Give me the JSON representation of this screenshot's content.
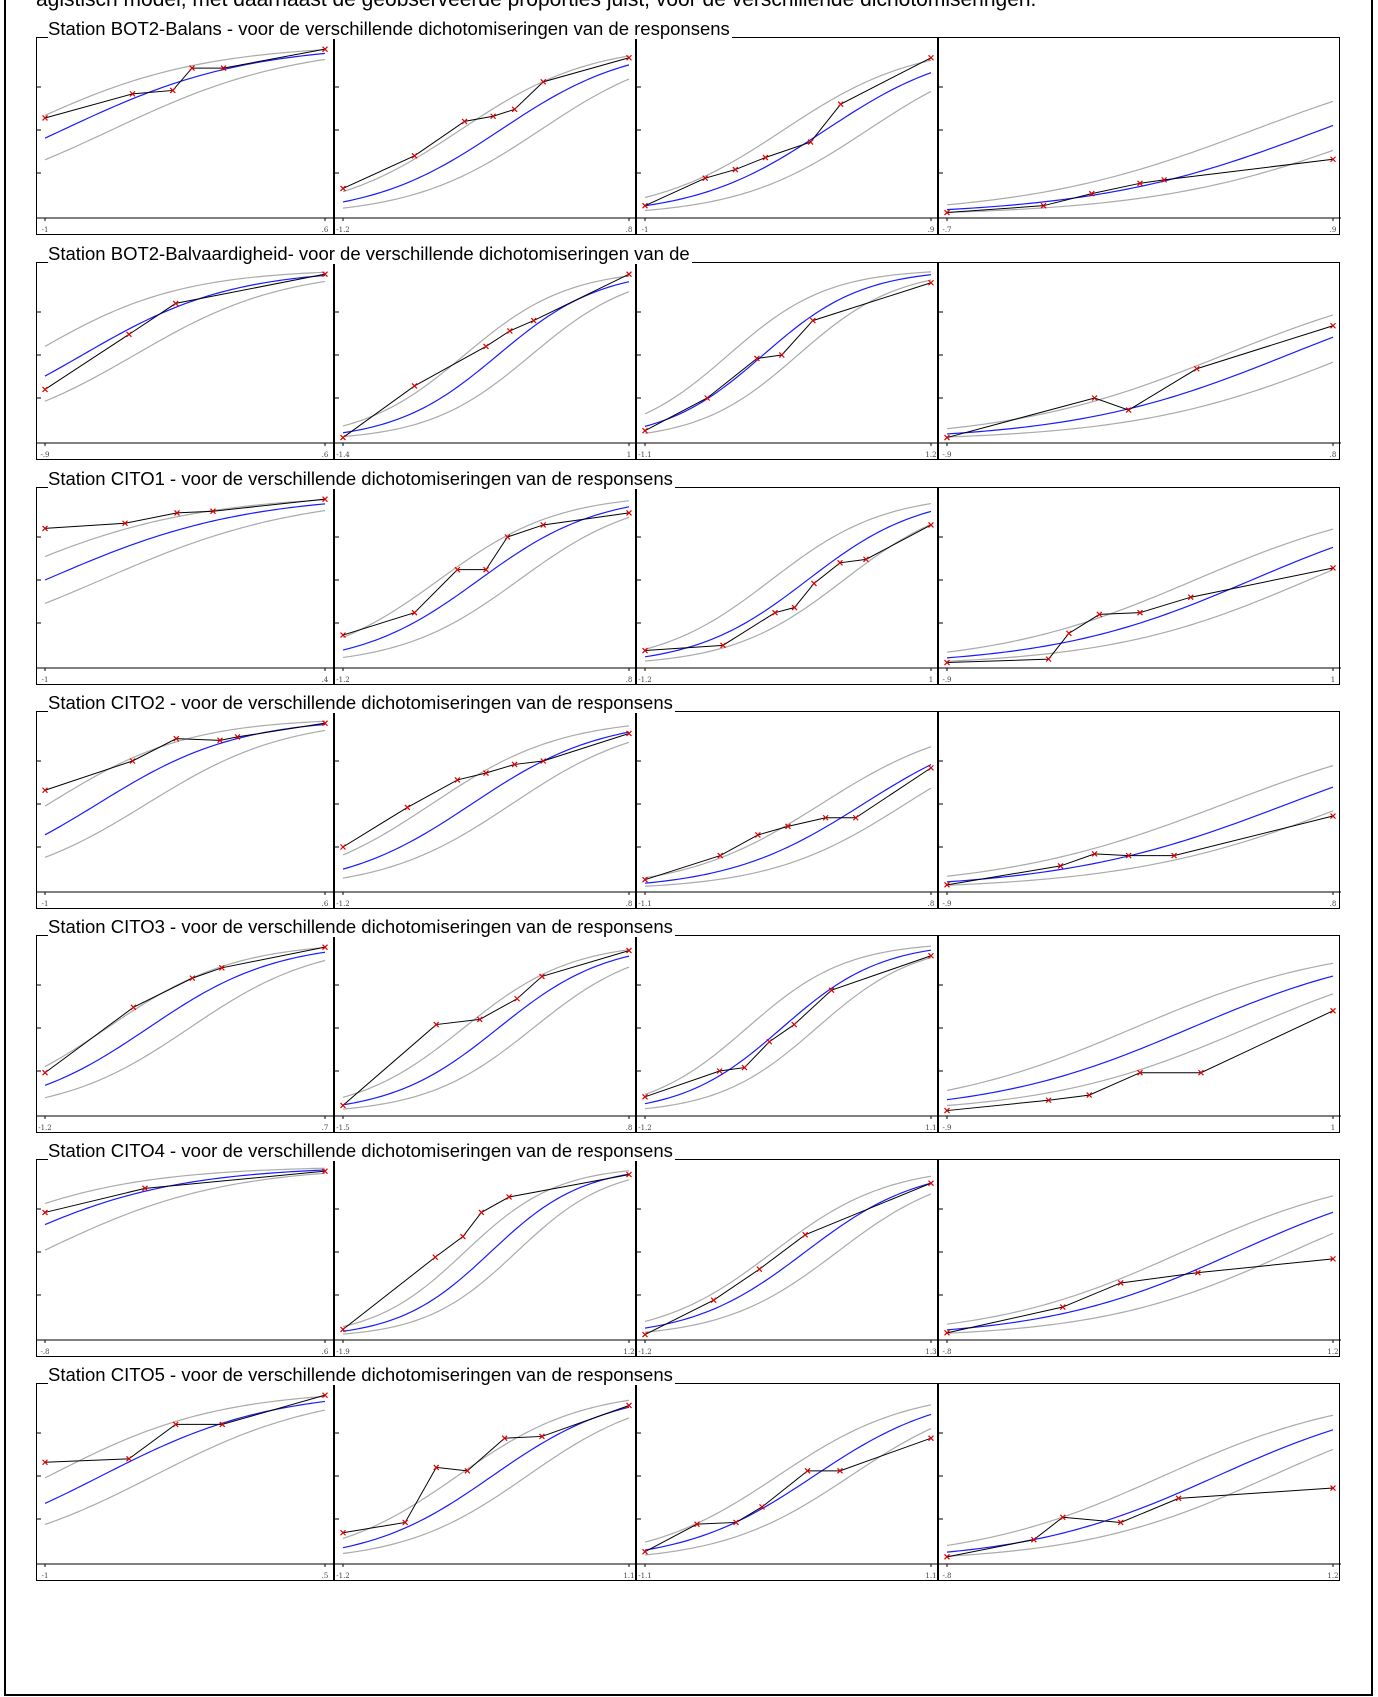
{
  "page": {
    "clipped_title": "agistisch model, met daarnaast de geobserveerde proporties juist, voor de verschillende dichotomiseringen."
  },
  "colors": {
    "fit_curve": "#1a1aff",
    "band": "#aaaaaa",
    "observed_line": "#000000",
    "observed_marker": "#dd0000"
  },
  "stations": [
    {
      "title": "Station BOT2-Balans - voor de verschillende dichotomiseringen van de responsens",
      "panels": [
        {
          "xmin": "-1",
          "xmax": ".6",
          "x0": -1,
          "x1": 0.6,
          "a": 1.9,
          "b": -0.9,
          "obs": [
            [
              -1,
              0.57
            ],
            [
              -0.5,
              0.71
            ],
            [
              -0.27,
              0.73
            ],
            [
              -0.16,
              0.86
            ],
            [
              0.02,
              0.86
            ],
            [
              0.6,
              0.97
            ]
          ]
        },
        {
          "xmin": "-1.2",
          "xmax": ".8",
          "x0": -1.2,
          "x1": 0.8,
          "a": 2.2,
          "b": -0.1,
          "obs": [
            [
              -1.2,
              0.16
            ],
            [
              -0.7,
              0.35
            ],
            [
              -0.35,
              0.55
            ],
            [
              -0.15,
              0.58
            ],
            [
              0,
              0.62
            ],
            [
              0.2,
              0.78
            ],
            [
              0.8,
              0.92
            ]
          ]
        },
        {
          "xmin": "-1",
          "xmax": ".9",
          "x0": -1,
          "x1": 0.9,
          "a": 2.3,
          "b": 0.2,
          "obs": [
            [
              -1,
              0.06
            ],
            [
              -0.6,
              0.22
            ],
            [
              -0.4,
              0.27
            ],
            [
              -0.2,
              0.34
            ],
            [
              0.1,
              0.43
            ],
            [
              0.3,
              0.65
            ],
            [
              0.9,
              0.92
            ]
          ]
        },
        {
          "xmin": "-.7",
          "xmax": ".9",
          "x0": -0.7,
          "x1": 0.9,
          "a": 2.1,
          "b": 0.85,
          "obs": [
            [
              -0.7,
              0.02
            ],
            [
              -0.3,
              0.06
            ],
            [
              -0.1,
              0.13
            ],
            [
              0.1,
              0.19
            ],
            [
              0.2,
              0.21
            ],
            [
              0.9,
              0.33
            ]
          ]
        }
      ]
    },
    {
      "title": "Station BOT2-Balvaardigheid- voor de verschillende dichotomiseringen van de",
      "panels": [
        {
          "xmin": "-.9",
          "xmax": ".6",
          "x0": -0.9,
          "x1": 0.6,
          "a": 2.5,
          "b": -0.7,
          "obs": [
            [
              -0.9,
              0.3
            ],
            [
              -0.45,
              0.62
            ],
            [
              -0.2,
              0.8
            ],
            [
              0.6,
              0.97
            ]
          ]
        },
        {
          "xmin": "-1.4",
          "xmax": "1",
          "x0": -1.4,
          "x1": 1,
          "a": 2.3,
          "b": -0.1,
          "obs": [
            [
              -1.4,
              0.02
            ],
            [
              -0.8,
              0.32
            ],
            [
              -0.2,
              0.55
            ],
            [
              0,
              0.64
            ],
            [
              0.2,
              0.7
            ],
            [
              1,
              0.97
            ]
          ]
        },
        {
          "xmin": "-1.1",
          "xmax": "1.2",
          "x0": -1.1,
          "x1": 1.2,
          "a": 2.5,
          "b": -0.15,
          "obs": [
            [
              -1.1,
              0.06
            ],
            [
              -0.6,
              0.25
            ],
            [
              -0.2,
              0.48
            ],
            [
              0,
              0.5
            ],
            [
              0.25,
              0.7
            ],
            [
              1.2,
              0.92
            ]
          ]
        },
        {
          "xmin": "-.9",
          "xmax": ".8",
          "x0": -0.9,
          "x1": 0.8,
          "a": 2.1,
          "b": 0.6,
          "obs": [
            [
              -0.9,
              0.02
            ],
            [
              -0.25,
              0.25
            ],
            [
              -0.1,
              0.18
            ],
            [
              0.2,
              0.42
            ],
            [
              0.8,
              0.67
            ]
          ]
        }
      ]
    },
    {
      "title": "Station CITO1 - voor de verschillende dichotomiseringen van de responsens",
      "panels": [
        {
          "xmin": "-1",
          "xmax": ".4",
          "x0": -1,
          "x1": 0.4,
          "a": 2.0,
          "b": -1.0,
          "obs": [
            [
              -1,
              0.8
            ],
            [
              -0.6,
              0.83
            ],
            [
              -0.34,
              0.89
            ],
            [
              -0.16,
              0.9
            ],
            [
              0.4,
              0.97
            ]
          ]
        },
        {
          "xmin": "-1.2",
          "xmax": ".8",
          "x0": -1.2,
          "x1": 0.8,
          "a": 2.4,
          "b": -0.25,
          "obs": [
            [
              -1.2,
              0.18
            ],
            [
              -0.7,
              0.31
            ],
            [
              -0.4,
              0.56
            ],
            [
              -0.2,
              0.56
            ],
            [
              -0.05,
              0.75
            ],
            [
              0.2,
              0.82
            ],
            [
              0.8,
              0.89
            ]
          ]
        },
        {
          "xmin": "-1.2",
          "xmax": "1",
          "x0": -1.2,
          "x1": 1,
          "a": 2.3,
          "b": 0.05,
          "obs": [
            [
              -1.2,
              0.09
            ],
            [
              -0.6,
              0.12
            ],
            [
              -0.2,
              0.31
            ],
            [
              -0.05,
              0.34
            ],
            [
              0.1,
              0.48
            ],
            [
              0.3,
              0.6
            ],
            [
              0.5,
              0.62
            ],
            [
              1,
              0.82
            ]
          ]
        },
        {
          "xmin": "-.9",
          "xmax": "1",
          "x0": -0.9,
          "x1": 1,
          "a": 2.0,
          "b": 0.6,
          "obs": [
            [
              -0.9,
              0.02
            ],
            [
              -0.4,
              0.04
            ],
            [
              -0.3,
              0.19
            ],
            [
              -0.15,
              0.3
            ],
            [
              0.05,
              0.31
            ],
            [
              0.3,
              0.4
            ],
            [
              1,
              0.57
            ]
          ]
        }
      ]
    },
    {
      "title": "Station CITO2 - voor de verschillende dichotomiseringen van de responsens",
      "panels": [
        {
          "xmin": "-1",
          "xmax": ".6",
          "x0": -1,
          "x1": 0.6,
          "a": 2.5,
          "b": -0.7,
          "obs": [
            [
              -1,
              0.58
            ],
            [
              -0.5,
              0.75
            ],
            [
              -0.25,
              0.88
            ],
            [
              0,
              0.87
            ],
            [
              0.1,
              0.89
            ],
            [
              0.6,
              0.97
            ]
          ]
        },
        {
          "xmin": "-1.2",
          "xmax": ".8",
          "x0": -1.2,
          "x1": 0.8,
          "a": 2.2,
          "b": -0.3,
          "obs": [
            [
              -1.2,
              0.25
            ],
            [
              -0.75,
              0.48
            ],
            [
              -0.4,
              0.64
            ],
            [
              -0.2,
              0.68
            ],
            [
              0,
              0.73
            ],
            [
              0.2,
              0.75
            ],
            [
              0.8,
              0.91
            ]
          ]
        },
        {
          "xmin": "-1.1",
          "xmax": ".8",
          "x0": -1.1,
          "x1": 0.8,
          "a": 2.2,
          "b": 0.35,
          "obs": [
            [
              -1.1,
              0.06
            ],
            [
              -0.6,
              0.2
            ],
            [
              -0.35,
              0.32
            ],
            [
              -0.15,
              0.37
            ],
            [
              0.1,
              0.42
            ],
            [
              0.3,
              0.42
            ],
            [
              0.8,
              0.71
            ]
          ]
        },
        {
          "xmin": "-.9",
          "xmax": ".8",
          "x0": -0.9,
          "x1": 0.8,
          "a": 2.0,
          "b": 0.6,
          "obs": [
            [
              -0.9,
              0.03
            ],
            [
              -0.4,
              0.14
            ],
            [
              -0.25,
              0.21
            ],
            [
              -0.1,
              0.2
            ],
            [
              0.1,
              0.2
            ],
            [
              0.8,
              0.43
            ]
          ]
        }
      ]
    },
    {
      "title": "Station CITO3 - voor de verschillende dichotomiseringen van de responsens",
      "panels": [
        {
          "xmin": "-1.2",
          "xmax": ".7",
          "x0": -1.2,
          "x1": 0.7,
          "a": 2.3,
          "b": -0.5,
          "obs": [
            [
              -1.2,
              0.24
            ],
            [
              -0.6,
              0.62
            ],
            [
              -0.2,
              0.79
            ],
            [
              0,
              0.85
            ],
            [
              0.7,
              0.97
            ]
          ]
        },
        {
          "xmin": "-1.5",
          "xmax": ".8",
          "x0": -1.5,
          "x1": 0.8,
          "a": 2.3,
          "b": -0.25,
          "obs": [
            [
              -1.5,
              0.05
            ],
            [
              -0.75,
              0.52
            ],
            [
              -0.4,
              0.55
            ],
            [
              -0.1,
              0.67
            ],
            [
              0.1,
              0.8
            ],
            [
              0.8,
              0.95
            ]
          ]
        },
        {
          "xmin": "-1.2",
          "xmax": "1.1",
          "x0": -1.2,
          "x1": 1.1,
          "a": 2.5,
          "b": -0.1,
          "obs": [
            [
              -1.2,
              0.1
            ],
            [
              -0.6,
              0.25
            ],
            [
              -0.4,
              0.27
            ],
            [
              -0.2,
              0.42
            ],
            [
              0,
              0.52
            ],
            [
              0.3,
              0.72
            ],
            [
              1.1,
              0.92
            ]
          ]
        },
        {
          "xmin": "-.9",
          "xmax": "1",
          "x0": -0.9,
          "x1": 1,
          "a": 2.0,
          "b": 0.3,
          "obs": [
            [
              -0.9,
              0.02
            ],
            [
              -0.4,
              0.08
            ],
            [
              -0.2,
              0.11
            ],
            [
              0.05,
              0.24
            ],
            [
              0.35,
              0.24
            ],
            [
              1,
              0.6
            ]
          ]
        }
      ]
    },
    {
      "title": "Station CITO4 - voor de verschillende dichotomiseringen van de responsens",
      "panels": [
        {
          "xmin": "-.8",
          "xmax": ".6",
          "x0": -0.8,
          "x1": 0.6,
          "a": 2.2,
          "b": -1.1,
          "obs": [
            [
              -0.8,
              0.73
            ],
            [
              -0.3,
              0.87
            ],
            [
              0.6,
              0.97
            ]
          ]
        },
        {
          "xmin": "-1.9",
          "xmax": "1.2",
          "x0": -1.9,
          "x1": 1.2,
          "a": 2.0,
          "b": -0.3,
          "obs": [
            [
              -1.9,
              0.05
            ],
            [
              -0.9,
              0.47
            ],
            [
              -0.6,
              0.59
            ],
            [
              -0.4,
              0.73
            ],
            [
              -0.1,
              0.82
            ],
            [
              1.2,
              0.95
            ]
          ]
        },
        {
          "xmin": "-1.2",
          "xmax": "1.3",
          "x0": -1.2,
          "x1": 1.3,
          "a": 2.0,
          "b": 0.2,
          "obs": [
            [
              -1.2,
              0.02
            ],
            [
              -0.6,
              0.22
            ],
            [
              -0.2,
              0.4
            ],
            [
              0.2,
              0.6
            ],
            [
              1.3,
              0.9
            ]
          ]
        },
        {
          "xmin": "-.8",
          "xmax": "1.2",
          "x0": -0.8,
          "x1": 1.2,
          "a": 2.0,
          "b": 0.7,
          "obs": [
            [
              -0.8,
              0.03
            ],
            [
              -0.2,
              0.18
            ],
            [
              0.1,
              0.32
            ],
            [
              0.5,
              0.38
            ],
            [
              1.2,
              0.46
            ]
          ]
        }
      ]
    },
    {
      "title": "Station CITO5 - voor de verschillende dichotomiseringen van de responsens",
      "panels": [
        {
          "xmin": "-1",
          "xmax": ".5",
          "x0": -1,
          "x1": 0.5,
          "a": 2.2,
          "b": -0.7,
          "obs": [
            [
              -1,
              0.58
            ],
            [
              -0.55,
              0.6
            ],
            [
              -0.3,
              0.8
            ],
            [
              -0.05,
              0.8
            ],
            [
              0.5,
              0.97
            ]
          ]
        },
        {
          "xmin": "-1.2",
          "xmax": "1.1",
          "x0": -1.2,
          "x1": 1.1,
          "a": 2.0,
          "b": 0.0,
          "obs": [
            [
              -1.2,
              0.17
            ],
            [
              -0.7,
              0.23
            ],
            [
              -0.45,
              0.55
            ],
            [
              -0.2,
              0.53
            ],
            [
              0.1,
              0.72
            ],
            [
              0.4,
              0.73
            ],
            [
              1.1,
              0.91
            ]
          ]
        },
        {
          "xmin": "-1.1",
          "xmax": "1.1",
          "x0": -1.1,
          "x1": 1.1,
          "a": 2.0,
          "b": 0.2,
          "obs": [
            [
              -1.1,
              0.06
            ],
            [
              -0.7,
              0.22
            ],
            [
              -0.4,
              0.23
            ],
            [
              -0.2,
              0.32
            ],
            [
              0.15,
              0.53
            ],
            [
              0.4,
              0.53
            ],
            [
              1.1,
              0.72
            ]
          ]
        },
        {
          "xmin": "-.8",
          "xmax": "1.2",
          "x0": -0.8,
          "x1": 1.2,
          "a": 2.0,
          "b": 0.6,
          "obs": [
            [
              -0.8,
              0.03
            ],
            [
              -0.35,
              0.13
            ],
            [
              -0.2,
              0.26
            ],
            [
              0.1,
              0.23
            ],
            [
              0.4,
              0.37
            ],
            [
              1.2,
              0.43
            ]
          ]
        }
      ]
    }
  ]
}
